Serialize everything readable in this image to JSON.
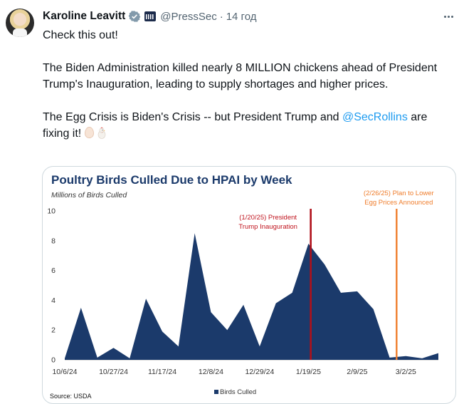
{
  "author": {
    "name": "Karoline Leavitt",
    "handle": "@PressSec",
    "time": "14 год"
  },
  "icons": {
    "verified": "verified-check-icon",
    "affiliation": "white-house-badge-icon",
    "more": "more-options-icon",
    "egg": "egg-emoji",
    "chicken": "chicken-emoji"
  },
  "tweet": {
    "line1": "Check this out!",
    "line2": "The Biden Administration killed nearly 8 MILLION chickens ahead of President Trump's Inauguration, leading to supply shortages and higher prices.",
    "line3_prefix": "The Egg Crisis is Biden's Crisis -- but President Trump and ",
    "mention": "@SecRollins",
    "line3_suffix": " are fixing it!"
  },
  "colors": {
    "area": "#1b3a6b",
    "trump_line": "#b0101a",
    "plan_line": "#ef7d2c",
    "mention": "#1d9bf0",
    "verified": "#829aab"
  },
  "chart_data": {
    "type": "area",
    "title": "Poultry Birds Culled Due to HPAI by Week",
    "ylabel": "Millions of Birds Culled",
    "ylim": [
      0,
      10
    ],
    "yticks": [
      0,
      2,
      4,
      6,
      8,
      10
    ],
    "grid": false,
    "legend_position": "bottom",
    "xticks": [
      "10/6/24",
      "10/27/24",
      "11/17/24",
      "12/8/24",
      "12/29/24",
      "1/19/25",
      "2/9/25",
      "3/2/25"
    ],
    "x": [
      "10/6/24",
      "10/13/24",
      "10/20/24",
      "10/27/24",
      "11/3/24",
      "11/10/24",
      "11/17/24",
      "11/24/24",
      "12/1/24",
      "12/8/24",
      "12/15/24",
      "12/22/24",
      "12/29/24",
      "1/5/25",
      "1/12/25",
      "1/19/25",
      "1/26/25",
      "2/2/25",
      "2/9/25",
      "2/16/25",
      "2/23/25",
      "3/2/25",
      "3/9/25",
      "3/16/25"
    ],
    "series": [
      {
        "name": "Birds Culled",
        "values": [
          0.1,
          3.5,
          0.15,
          0.8,
          0.1,
          4.1,
          1.9,
          0.9,
          8.5,
          3.2,
          2.0,
          3.7,
          0.9,
          3.8,
          4.5,
          7.8,
          6.4,
          4.5,
          4.6,
          3.4,
          0.15,
          0.25,
          0.1,
          0.45
        ]
      }
    ],
    "annotations": [
      {
        "date": "1/20/25",
        "label_line1": "(1/20/25)  President",
        "label_line2": "Trump Inauguration",
        "color": "#b0101a"
      },
      {
        "date": "2/26/25",
        "label_line1": "(2/26/25)  Plan to Lower",
        "label_line2": "Egg Prices Announced",
        "color": "#ef7d2c"
      }
    ],
    "source": "Source: USDA",
    "legend": "Birds Culled"
  }
}
